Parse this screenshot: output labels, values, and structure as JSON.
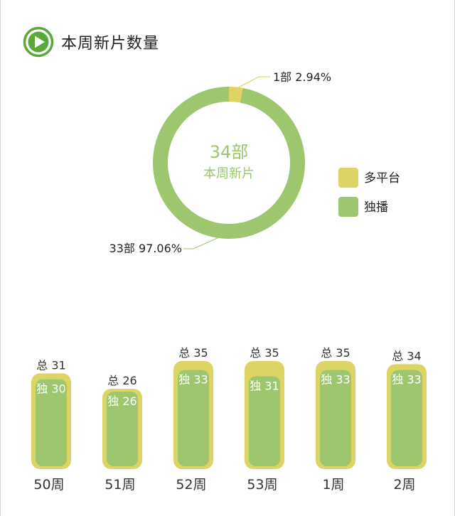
{
  "header": {
    "title": "本周新片数量",
    "icon": "play-circle-icon"
  },
  "colors": {
    "accent": "#5aa83a",
    "multi_platform": "#ddd466",
    "exclusive": "#9dc66f",
    "leader_line": "#d9cf4a"
  },
  "chart_data": [
    {
      "type": "pie",
      "variant": "donut",
      "center_value": "34部",
      "center_label": "本周新片",
      "slices": [
        {
          "name": "多平台",
          "count": 1,
          "value": 2.94,
          "label": "1部  2.94%"
        },
        {
          "name": "独播",
          "count": 33,
          "value": 97.06,
          "label": "33部  97.06%"
        }
      ],
      "legend": [
        "多平台",
        "独播"
      ],
      "legend_position": "right"
    },
    {
      "type": "bar",
      "categories": [
        "50周",
        "51周",
        "52周",
        "53周",
        "1周",
        "2周"
      ],
      "series": [
        {
          "name": "总",
          "values": [
            31,
            26,
            35,
            35,
            35,
            34
          ]
        },
        {
          "name": "独",
          "values": [
            30,
            26,
            33,
            31,
            33,
            33
          ]
        }
      ],
      "ylim": [
        0,
        35
      ]
    }
  ]
}
